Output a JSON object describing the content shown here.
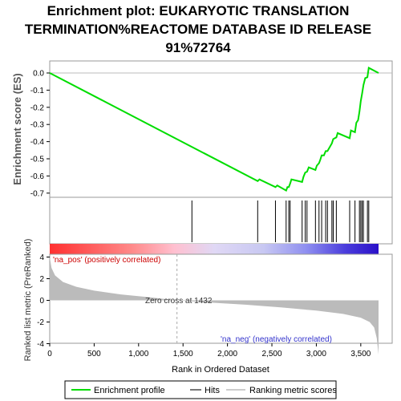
{
  "title_lines": [
    "Enrichment plot: EUKARYOTIC TRANSLATION",
    "TERMINATION%REACTOME DATABASE ID RELEASE",
    "91%72764"
  ],
  "colors": {
    "es_line": "#00dd00",
    "hit_line": "#000000",
    "metric_fill": "#bbbbbb",
    "pos_label": "#cc0000",
    "neg_label": "#3333cc"
  },
  "legend": [
    {
      "label": "Enrichment profile",
      "color": "#00dd00"
    },
    {
      "label": "Hits",
      "color": "#777777"
    },
    {
      "label": "Ranking metric scores",
      "color": "#cccccc"
    }
  ],
  "chart_data": [
    {
      "type": "line",
      "panel": "enrichment-profile",
      "ylabel": "Enrichment score (ES)",
      "xlim": [
        0,
        3750
      ],
      "ylim": [
        -0.72,
        0.07
      ],
      "yticks": [
        0.0,
        -0.1,
        -0.2,
        -0.3,
        -0.4,
        -0.5,
        -0.6,
        -0.7
      ],
      "ytick_labels": [
        "0.0",
        "-0.1",
        "-0.2",
        "-0.3",
        "-0.4",
        "-0.5",
        "-0.6",
        "-0.7"
      ],
      "series": [
        {
          "name": "Enrichment profile",
          "x": [
            0,
            2340,
            2360,
            2540,
            2560,
            2660,
            2675,
            2690,
            2705,
            2720,
            2840,
            2855,
            2875,
            2895,
            2915,
            2990,
            3005,
            3030,
            3045,
            3060,
            3085,
            3105,
            3125,
            3175,
            3190,
            3225,
            3240,
            3375,
            3390,
            3435,
            3450,
            3470,
            3485,
            3500,
            3515,
            3530,
            3550,
            3575,
            3590,
            3700
          ],
          "y": [
            0.0,
            -0.63,
            -0.62,
            -0.665,
            -0.655,
            -0.685,
            -0.665,
            -0.665,
            -0.645,
            -0.62,
            -0.635,
            -0.605,
            -0.58,
            -0.575,
            -0.55,
            -0.565,
            -0.54,
            -0.525,
            -0.505,
            -0.48,
            -0.48,
            -0.455,
            -0.455,
            -0.41,
            -0.385,
            -0.375,
            -0.35,
            -0.38,
            -0.335,
            -0.345,
            -0.29,
            -0.275,
            -0.225,
            -0.165,
            -0.12,
            -0.07,
            -0.03,
            -0.025,
            0.03,
            0.0
          ]
        }
      ]
    },
    {
      "type": "scatter",
      "panel": "hits",
      "hits": [
        1600,
        2340,
        2540,
        2660,
        2690,
        2705,
        2840,
        2875,
        2895,
        2990,
        3030,
        3060,
        3105,
        3125,
        3175,
        3190,
        3225,
        3375,
        3435,
        3485,
        3500,
        3515,
        3530,
        3575,
        3590
      ]
    },
    {
      "type": "area",
      "panel": "ranked-list-metric",
      "ylabel": "Ranked list metric (PreRanked)",
      "xlabel": "Rank in Ordered Dataset",
      "xlim": [
        0,
        3750
      ],
      "ylim": [
        -5,
        5
      ],
      "xticks": [
        0,
        500,
        1000,
        1500,
        2000,
        2500,
        3000,
        3500
      ],
      "xtick_labels": [
        "0",
        "500",
        "1,000",
        "1,500",
        "2,000",
        "2,500",
        "3,000",
        "3,500"
      ],
      "yticks": [
        4,
        2,
        0,
        -2,
        -4
      ],
      "ytick_labels": [
        "4",
        "2",
        "0",
        "-2",
        "-4"
      ],
      "x": [
        0,
        20,
        60,
        150,
        300,
        500,
        800,
        1100,
        1432,
        1800,
        2200,
        2600,
        3000,
        3300,
        3500,
        3600,
        3650,
        3680,
        3700
      ],
      "y": [
        4.0,
        3.0,
        2.3,
        1.7,
        1.25,
        0.9,
        0.55,
        0.3,
        0.0,
        -0.2,
        -0.4,
        -0.65,
        -0.95,
        -1.25,
        -1.6,
        -2.0,
        -2.5,
        -3.5,
        -5.0
      ],
      "zero_cross_rank": 1432,
      "annotations": {
        "zero_cross": "Zero cross at 1432",
        "pos": "'na_pos' (positively correlated)",
        "neg": "'na_neg' (negatively correlated)"
      }
    }
  ]
}
